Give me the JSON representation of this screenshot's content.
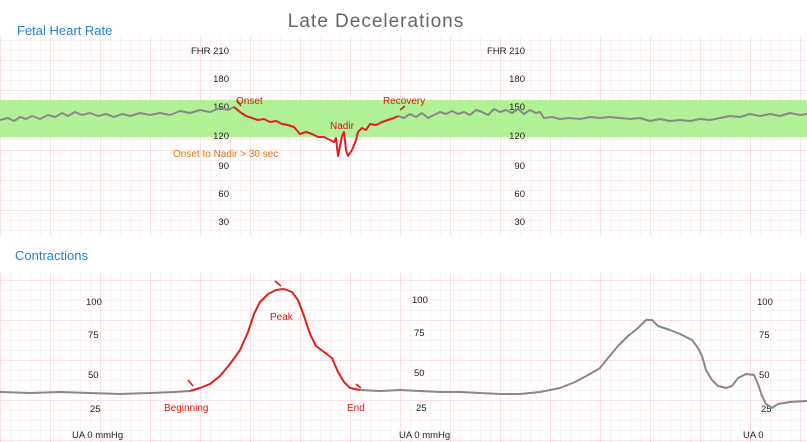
{
  "title": "Late Decelerations",
  "fhr_panel": {
    "heading": "Fetal Heart Rate",
    "ticks_col1": [
      "FHR 210",
      "180",
      "150",
      "120",
      "90",
      "60",
      "30"
    ],
    "ticks_col2": [
      "FHR 210",
      "180",
      "150",
      "120",
      "90",
      "60",
      "30"
    ],
    "normal_band_color": "#a8f08a",
    "annotations": {
      "onset": "Onset",
      "nadir": "Nadir",
      "recovery": "Recovery",
      "onset_to_nadir": "Onset to Nadir > 30 sec"
    }
  },
  "contractions_panel": {
    "heading": "Contractions",
    "ticks_col1": [
      "100",
      "75",
      "50",
      "25",
      "UA 0 mmHg"
    ],
    "ticks_col2": [
      "100",
      "75",
      "50",
      "25",
      "UA 0 mmHg"
    ],
    "ticks_col3": [
      "100",
      "75",
      "50",
      "25",
      "UA 0"
    ],
    "annotations": {
      "beginning": "Beginning",
      "peak": "Peak",
      "end": "End"
    }
  },
  "colors": {
    "heading": "#2a7fd4",
    "title": "#666666",
    "trace_gray": "#888888",
    "trace_red": "#e02020",
    "label_red": "#d01818",
    "label_orange": "#e07010",
    "grid_major": "#f0c4c8",
    "grid_minor": "#fbe3e5"
  }
}
